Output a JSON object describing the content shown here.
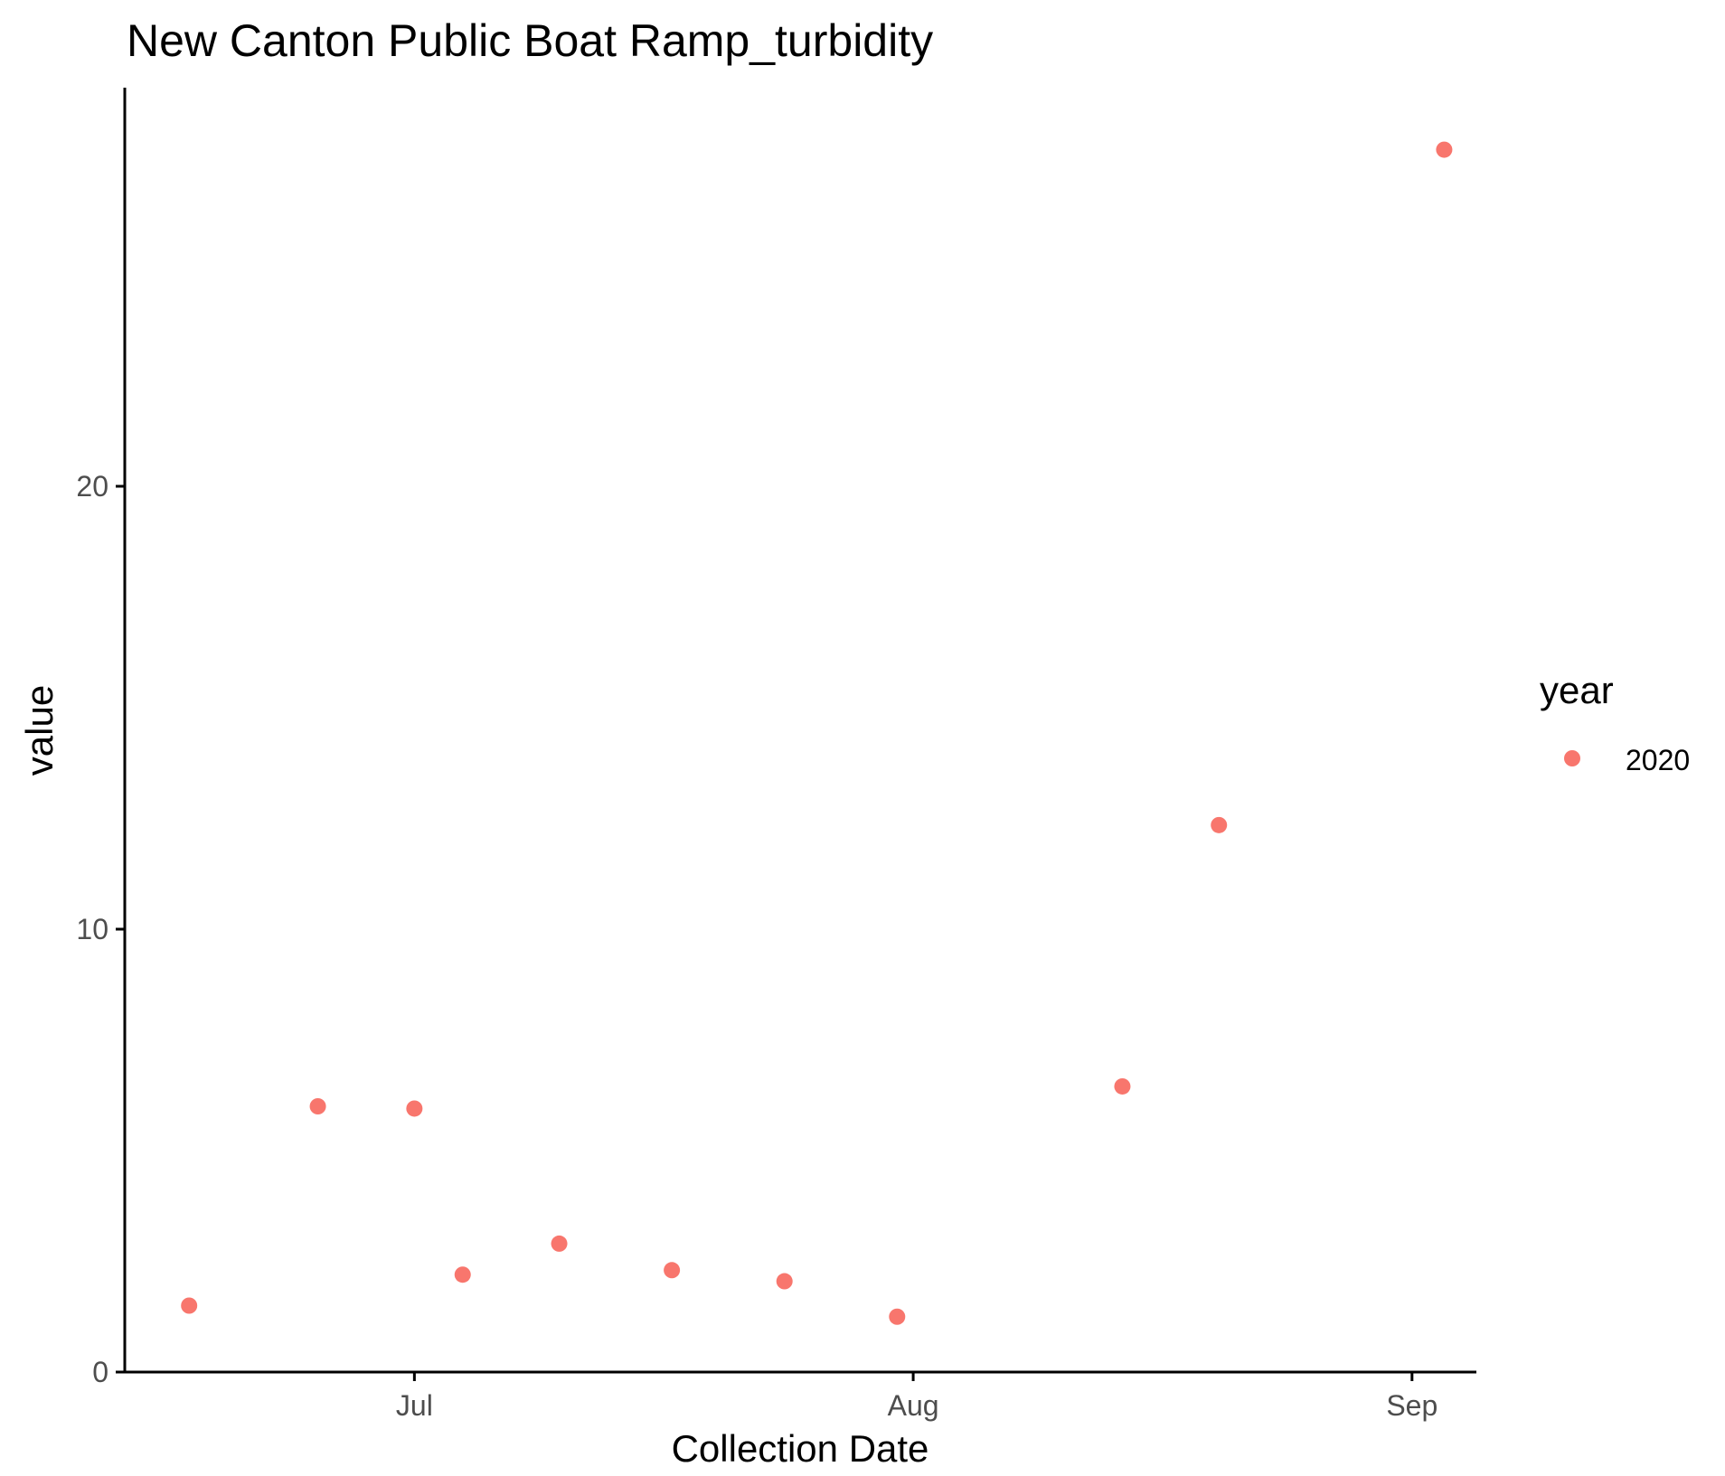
{
  "chart_data": {
    "type": "scatter",
    "title": "New Canton Public Boat Ramp_turbidity",
    "xlabel": "Collection Date",
    "ylabel": "value",
    "x_type": "date",
    "xlim": [
      "2020-06-13",
      "2020-09-05"
    ],
    "ylim": [
      0,
      29
    ],
    "x_ticks": [
      {
        "value": "2020-07-01",
        "label": "Jul"
      },
      {
        "value": "2020-08-01",
        "label": "Aug"
      },
      {
        "value": "2020-09-01",
        "label": "Sep"
      }
    ],
    "y_ticks": [
      {
        "value": 0,
        "label": "0"
      },
      {
        "value": 10,
        "label": "10"
      },
      {
        "value": 20,
        "label": "20"
      }
    ],
    "grid": false,
    "legend": {
      "title": "year",
      "position": "right",
      "entries": [
        {
          "label": "2020",
          "color": "#F8766D"
        }
      ]
    },
    "series": [
      {
        "name": "2020",
        "color": "#F8766D",
        "points": [
          {
            "x": "2020-06-17",
            "y": 1.5
          },
          {
            "x": "2020-06-25",
            "y": 6.0
          },
          {
            "x": "2020-07-01",
            "y": 5.95
          },
          {
            "x": "2020-07-04",
            "y": 2.2
          },
          {
            "x": "2020-07-10",
            "y": 2.9
          },
          {
            "x": "2020-07-17",
            "y": 2.3
          },
          {
            "x": "2020-07-24",
            "y": 2.05
          },
          {
            "x": "2020-07-31",
            "y": 1.25
          },
          {
            "x": "2020-08-14",
            "y": 6.45
          },
          {
            "x": "2020-08-20",
            "y": 12.35
          },
          {
            "x": "2020-09-03",
            "y": 27.6
          }
        ]
      }
    ]
  }
}
